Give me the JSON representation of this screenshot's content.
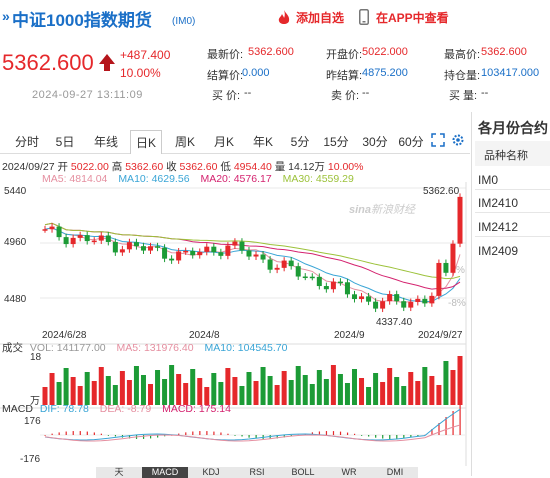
{
  "header": {
    "title": "中证1000指数期货",
    "code": "(IM0)",
    "add_watch": "添加自选",
    "app_view": "在APP中查看"
  },
  "quote": {
    "price": "5362.600",
    "change": "+487.400",
    "change_pct": "10.00%",
    "timestamp": "2024-09-27 13:11:09",
    "fields": {
      "latest_label": "最新价:",
      "latest": "5362.600",
      "open_label": "开盘价:",
      "open": "5022.000",
      "high_label": "最高价:",
      "high": "5362.600",
      "settle_label": "结算价:",
      "settle": "0.000",
      "prev_settle_label": "昨结算:",
      "prev_settle": "4875.200",
      "oi_label": "持仓量:",
      "oi": "103417.000",
      "bid_label": "买  价:",
      "bid": "--",
      "ask_label": "卖  价:",
      "ask": "--",
      "bid_vol_label": "买  量:",
      "bid_vol": "--"
    }
  },
  "tabs": [
    "分时",
    "5日",
    "年线",
    "日K",
    "周K",
    "月K",
    "年K",
    "5分",
    "15分",
    "30分",
    "60分"
  ],
  "active_tab": "日K",
  "kline_info": {
    "date": "2024/09/27",
    "open_label": "开",
    "open": "5022.00",
    "high_label": "高",
    "high": "5362.60",
    "close_label": "收",
    "close": "5362.60",
    "low_label": "低",
    "low": "4954.40",
    "vol_label": "量",
    "vol": "14.12万",
    "pct": "10.00%"
  },
  "ma": {
    "ma5": "MA5: 4814.04",
    "ma10": "MA10: 4629.56",
    "ma20": "MA20: 4576.17",
    "ma30": "MA30: 4559.29"
  },
  "price_axis": {
    "top": "5440",
    "mid": "4960",
    "low": "4480",
    "right_mid": "%",
    "right_low": "-8%"
  },
  "annotations": {
    "high": "5362.60",
    "low": "4337.40"
  },
  "date_axis": [
    "2024/6/28",
    "2024/8",
    "2024/9",
    "2024/9/27"
  ],
  "volume": {
    "label": "成交",
    "vol": "VOL: 141177.00",
    "ma5": "MA5: 131976.40",
    "ma10": "MA10: 104545.70",
    "axis_top": "18",
    "axis_unit": "万"
  },
  "macd": {
    "label": "MACD",
    "dif": "DIF: 78.78",
    "dea": "DEA: -8.79",
    "macd": "MACD: 175.14",
    "axis_top": "176",
    "axis_bottom": "-176"
  },
  "bottom_tabs": [
    "天",
    "MACD",
    "KDJ",
    "RSI",
    "BOLL",
    "WR",
    "DMI"
  ],
  "bottom_active": "MACD",
  "right_panel": {
    "title": "各月份合约",
    "column": "品种名称",
    "items": [
      "IM0",
      "IM2410",
      "IM2412",
      "IM2409"
    ]
  },
  "watermark": "新浪财经",
  "colors": {
    "up": "#e5282b",
    "down": "#1c9b36",
    "brand": "#1a6fc7",
    "ma5": "#e58fa0",
    "ma10": "#3aa5d6",
    "ma20": "#d4236f",
    "ma30": "#9cc23a"
  }
}
